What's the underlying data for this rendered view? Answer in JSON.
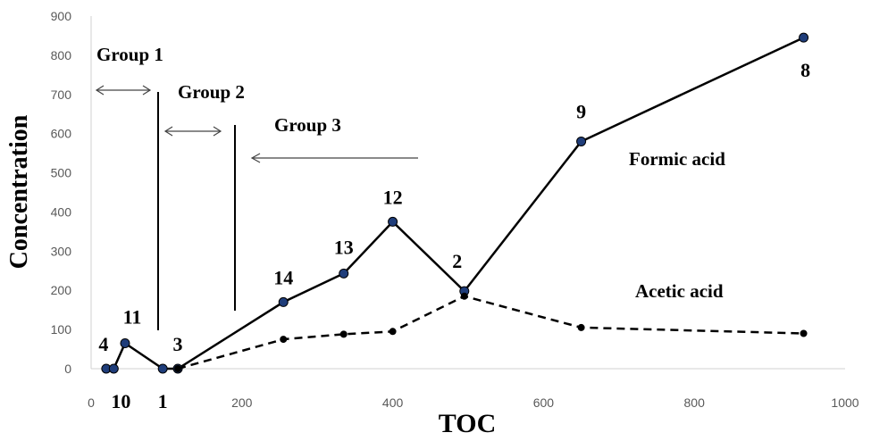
{
  "chart_data": {
    "type": "line",
    "xlabel": "TOC",
    "ylabel": "Concentration",
    "xlim": [
      0,
      1000
    ],
    "ylim": [
      0,
      900
    ],
    "xticks": [
      "0",
      "200",
      "400",
      "600",
      "800",
      "1000"
    ],
    "yticks": [
      "0",
      "100",
      "200",
      "300",
      "400",
      "500",
      "600",
      "700",
      "800",
      "900"
    ],
    "grid": false,
    "series": [
      {
        "name": "Formic acid",
        "style": "solid",
        "color": "#000000",
        "marker_color": "#1f3d7a",
        "x": [
          20,
          30,
          45,
          95,
          115,
          255,
          335,
          400,
          495,
          650,
          945
        ],
        "y": [
          0,
          0,
          65,
          0,
          0,
          170,
          243,
          375,
          198,
          580,
          845
        ]
      },
      {
        "name": "Acetic acid",
        "style": "dashed",
        "color": "#000000",
        "marker_color": "#000000",
        "x": [
          115,
          255,
          335,
          400,
          495,
          650,
          945
        ],
        "y": [
          0,
          75,
          88,
          95,
          185,
          105,
          90
        ]
      }
    ],
    "point_labels": [
      {
        "text": "4",
        "x": 20,
        "y": 0
      },
      {
        "text": "10",
        "x": 30,
        "y": 0
      },
      {
        "text": "11",
        "x": 45,
        "y": 65
      },
      {
        "text": "1",
        "x": 95,
        "y": 0
      },
      {
        "text": "3",
        "x": 115,
        "y": 0
      },
      {
        "text": "14",
        "x": 255,
        "y": 170
      },
      {
        "text": "13",
        "x": 335,
        "y": 243
      },
      {
        "text": "12",
        "x": 400,
        "y": 375
      },
      {
        "text": "2",
        "x": 495,
        "y": 198
      },
      {
        "text": "9",
        "x": 650,
        "y": 580
      },
      {
        "text": "8",
        "x": 945,
        "y": 845
      }
    ],
    "annotations": {
      "group1": "Group 1",
      "group2": "Group 2",
      "group3": "Group 3",
      "formic": "Formic acid",
      "acetic": "Acetic acid"
    }
  }
}
